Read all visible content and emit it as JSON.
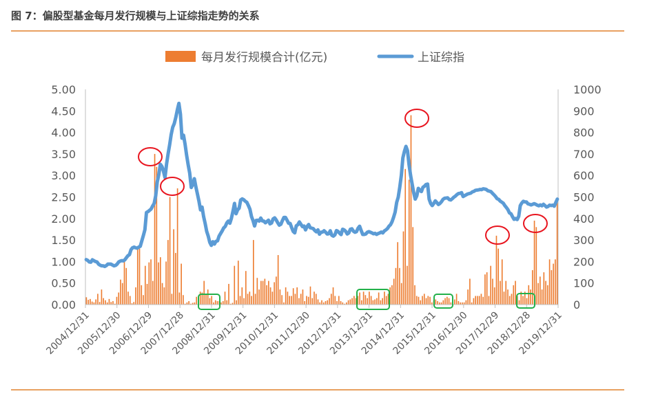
{
  "figure": {
    "title": "图 7：偏股型基金每月发行规模与上证综指走势的关系"
  },
  "colors": {
    "bars": "#ED7D31",
    "line": "#5B9BD5",
    "red_circle": "#E8141E",
    "green_box": "#22B04A",
    "rule": "#E8A060"
  },
  "chart_data": {
    "type": "bar",
    "legend": {
      "position": "top",
      "entries": [
        "每月发行规模合计(亿元)",
        "上证综指"
      ]
    },
    "left_axis": {
      "ticks": [
        "0.00",
        "0.50",
        "1.00",
        "1.50",
        "2.00",
        "2.50",
        "3.00",
        "3.50",
        "4.00",
        "4.50",
        "5.00"
      ],
      "ylim": [
        0,
        5
      ]
    },
    "right_axis": {
      "ticks": [
        "0",
        "100",
        "200",
        "300",
        "400",
        "500",
        "600",
        "700",
        "800",
        "900",
        "1000"
      ],
      "ylim": [
        0,
        1000
      ]
    },
    "x_tick_labels": [
      "2004/12/31",
      "2005/12/30",
      "2006/12/29",
      "2007/12/28",
      "2008/12/31",
      "2009/12/31",
      "2010/12/31",
      "2011/12/30",
      "2012/12/31",
      "2013/12/31",
      "2014/12/31",
      "2015/12/31",
      "2016/12/30",
      "2017/12/29",
      "2018/12/28",
      "2019/12/31"
    ],
    "series": [
      {
        "name": "每月发行规模合计(亿元)",
        "kind": "bar",
        "axis": "left",
        "values": [
          0.17,
          0.11,
          0.13,
          0.07,
          0.05,
          0.12,
          0.25,
          0.06,
          0.35,
          0.15,
          0.1,
          0.05,
          0.13,
          0.06,
          0.08,
          0.02,
          0.18,
          0.28,
          0.58,
          0.5,
          1.05,
          0.85,
          0.3,
          0.2,
          0.03,
          0.06,
          0.4,
          1.35,
          1.3,
          0.45,
          0.22,
          0.9,
          0.48,
          0.98,
          1.05,
          0.55,
          3.5,
          3.2,
          0.98,
          1.1,
          0.5,
          0.4,
          1.0,
          1.5,
          2.5,
          0.25,
          1.75,
          1.2,
          2.7,
          0.28,
          0.95,
          0.22,
          0.02,
          0.05,
          0.08,
          0.02,
          0.04,
          0.05,
          0.18,
          0.2,
          0.3,
          0.28,
          0.55,
          0.25,
          0.35,
          0.15,
          0.2,
          0.05,
          0.1,
          0.08,
          0.08,
          0.05,
          0.08,
          0.3,
          0.1,
          0.48,
          0.02,
          0.04,
          0.9,
          0.1,
          1.02,
          0.2,
          0.4,
          0.15,
          0.78,
          0.25,
          0.3,
          0.2,
          1.5,
          0.25,
          0.62,
          0.35,
          0.55,
          0.55,
          0.6,
          0.45,
          0.55,
          0.4,
          0.3,
          0.52,
          0.65,
          1.15,
          0.35,
          0.22,
          0.05,
          0.4,
          0.3,
          0.2,
          0.2,
          0.38,
          0.25,
          0.4,
          0.15,
          0.25,
          0.35,
          0.08,
          0.2,
          0.18,
          0.42,
          0.15,
          0.3,
          0.25,
          0.12,
          0.05,
          0.1,
          0.05,
          0.08,
          0.1,
          0.15,
          0.25,
          0.4,
          0.2,
          0.08,
          0.2,
          0.08,
          0.05,
          0.02,
          0.05,
          0.1,
          0.12,
          0.15,
          0.2,
          0.15,
          0.2,
          0.28,
          0.1,
          0.3,
          0.22,
          0.15,
          0.3,
          0.2,
          0.1,
          0.12,
          0.15,
          0.28,
          0.1,
          0.15,
          0.3,
          0.2,
          0.25,
          0.4,
          0.45,
          0.6,
          0.85,
          1.45,
          0.85,
          0.5,
          1.7,
          3.15,
          0.9,
          2.9,
          4.4,
          1.8,
          0.45,
          0.2,
          0.18,
          0.1,
          0.2,
          0.25,
          0.15,
          0.2,
          0.18,
          0.05,
          0.1,
          0.12,
          0.08,
          0.05,
          0.05,
          0.1,
          0.15,
          0.18,
          0.15,
          0.05,
          0.05,
          0.12,
          0.25,
          0.08,
          0.05,
          0.05,
          0.05,
          0.1,
          0.35,
          0.6,
          0.05,
          0.15,
          0.2,
          0.2,
          0.2,
          0.25,
          0.18,
          0.7,
          0.75,
          0.2,
          0.9,
          0.6,
          0.4,
          1.6,
          1.3,
          0.55,
          1.05,
          0.3,
          0.55,
          0.35,
          0.2,
          0.25,
          0.45,
          0.55,
          0.2,
          0.1,
          0.3,
          0.2,
          0.3,
          0.15,
          0.45,
          0.35,
          0.8,
          1.95,
          1.8,
          0.5,
          0.65,
          0.35,
          0.75,
          0.55,
          0.45,
          1.05,
          0.8,
          0.95,
          1.05,
          2.4
        ]
      },
      {
        "name": "上证综指",
        "kind": "line",
        "axis": "right",
        "values": [
          209,
          205,
          198,
          197,
          208,
          204,
          200,
          198,
          188,
          183,
          180,
          180,
          177,
          181,
          188,
          188,
          188,
          184,
          180,
          182,
          188,
          198,
          202,
          204,
          203,
          208,
          218,
          227,
          232,
          255,
          264,
          267,
          264,
          262,
          267,
          271,
          296,
          321,
          348,
          428,
          432,
          438,
          444,
          458,
          470,
          506,
          571,
          604,
          652,
          642,
          620,
          590,
          652,
          700,
          742,
          790,
          824,
          841,
          870,
          905,
          935,
          885,
          773,
          787,
          745,
          694,
          650,
          611,
          544,
          558,
          585,
          547,
          514,
          480,
          440,
          453,
          409,
          377,
          340,
          318,
          289,
          275,
          292,
          281,
          294,
          296,
          318,
          330,
          342,
          356,
          363,
          379,
          388,
          378,
          401,
          433,
          470,
          422,
          440,
          448,
          486,
          491,
          487,
          480,
          475,
          460,
          443,
          409,
          390,
          365,
          391,
          392,
          388,
          402,
          389,
          388,
          380,
          386,
          392,
          375,
          379,
          398,
          403,
          393,
          380,
          369,
          373,
          390,
          405,
          405,
          392,
          378,
          377,
          358,
          340,
          333,
          366,
          371,
          384,
          373,
          362,
          365,
          347,
          363,
          372,
          357,
          355,
          353,
          344,
          338,
          347,
          327,
          336,
          337,
          343,
          336,
          328,
          329,
          343,
          322,
          318,
          324,
          344,
          340,
          332,
          325,
          350,
          347,
          340,
          328,
          333,
          350,
          352,
          341,
          336,
          339,
          355,
          364,
          344,
          326,
          326,
          328,
          336,
          339,
          336,
          333,
          329,
          331,
          326,
          330,
          333,
          337,
          333,
          342,
          347,
          353,
          364,
          371,
          385,
          406,
          430,
          475,
          499,
          546,
          600,
          682,
          712,
          735,
          715,
          650,
          600,
          560,
          520,
          490,
          505,
          540,
          532,
          525,
          545,
          550,
          558,
          560,
          490,
          470,
          460,
          470,
          482,
          474,
          465,
          470,
          478,
          489,
          494,
          495,
          496,
          488,
          486,
          492,
          499,
          504,
          511,
          516,
          517,
          520,
          502,
          506,
          510,
          514,
          516,
          518,
          524,
          526,
          531,
          532,
          533,
          535,
          534,
          538,
          537,
          535,
          529,
          527,
          525,
          517,
          510,
          502,
          492,
          489,
          481,
          476,
          471,
          460,
          451,
          441,
          426,
          422,
          408,
          396,
          400,
          395,
          410,
          460,
          472,
          480,
          477,
          477,
          468,
          466,
          463,
          466,
          469,
          466,
          462,
          459,
          463,
          459,
          466,
          460,
          453,
          456,
          462,
          460,
          462,
          457,
          474,
          490
        ]
      }
    ],
    "annotations": {
      "red_circles": [
        "2006年末规模高峰",
        "2007年中规模高峰",
        "2015年中规模高峰",
        "2018年初规模高峰",
        "2019年初规模高峰"
      ],
      "green_boxes": [
        "2008年末规模低谷",
        "2014年中规模低谷",
        "2016年中规模低谷",
        "2018年末规模低谷"
      ]
    }
  }
}
